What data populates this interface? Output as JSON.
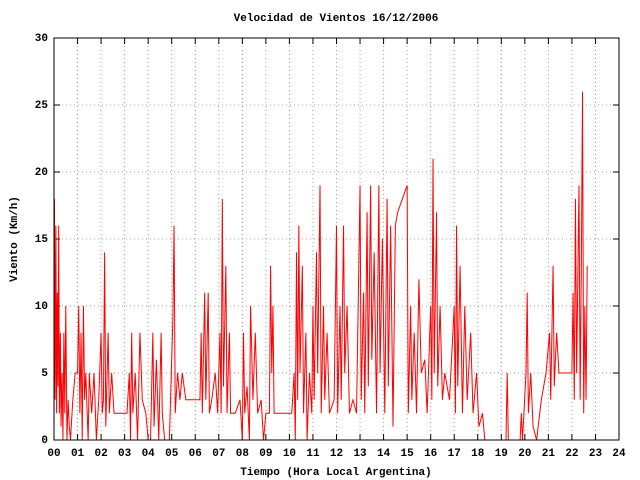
{
  "chart_data": {
    "type": "line",
    "title": "Velocidad de Vientos 16/12/2006",
    "xlabel": "Tiempo (Hora Local Argentina)",
    "ylabel": "Viento (Km/h)",
    "color": "#ff0000",
    "grid": true,
    "xlim": [
      0,
      24
    ],
    "xticks": [
      {
        "value": 0,
        "label": "00"
      },
      {
        "value": 1,
        "label": "01"
      },
      {
        "value": 2,
        "label": "02"
      },
      {
        "value": 3,
        "label": "03"
      },
      {
        "value": 4,
        "label": "04"
      },
      {
        "value": 5,
        "label": "05"
      },
      {
        "value": 6,
        "label": "06"
      },
      {
        "value": 7,
        "label": "07"
      },
      {
        "value": 8,
        "label": "08"
      },
      {
        "value": 9,
        "label": "09"
      },
      {
        "value": 10,
        "label": "10"
      },
      {
        "value": 11,
        "label": "11"
      },
      {
        "value": 12,
        "label": "12"
      },
      {
        "value": 13,
        "label": "13"
      },
      {
        "value": 14,
        "label": "14"
      },
      {
        "value": 15,
        "label": "15"
      },
      {
        "value": 16,
        "label": "16"
      },
      {
        "value": 17,
        "label": "17"
      },
      {
        "value": 18,
        "label": "18"
      },
      {
        "value": 19,
        "label": "19"
      },
      {
        "value": 20,
        "label": "20"
      },
      {
        "value": 21,
        "label": "21"
      },
      {
        "value": 22,
        "label": "22"
      },
      {
        "value": 23,
        "label": "23"
      },
      {
        "value": 24,
        "label": "24"
      }
    ],
    "ylim": [
      0,
      30
    ],
    "yticks": [
      0,
      5,
      10,
      15,
      20,
      25,
      30
    ],
    "x": [
      0,
      0.02,
      0.05,
      0.08,
      0.11,
      0.14,
      0.17,
      0.2,
      0.23,
      0.27,
      0.3,
      0.34,
      0.38,
      0.42,
      0.46,
      0.5,
      0.55,
      0.6,
      0.65,
      0.7,
      0.8,
      0.9,
      1,
      1.05,
      1.1,
      1.15,
      1.2,
      1.25,
      1.3,
      1.35,
      1.45,
      1.5,
      1.6,
      1.7,
      1.8,
      1.9,
      2,
      2.05,
      2.1,
      2.15,
      2.2,
      2.3,
      2.35,
      2.45,
      2.55,
      2.8,
      3.1,
      3.2,
      3.25,
      3.3,
      3.35,
      3.45,
      3.55,
      3.65,
      3.75,
      3.9,
      4,
      4.1,
      4.2,
      4.25,
      4.35,
      4.45,
      4.55,
      4.6,
      4.7,
      4.9,
      5.05,
      5.1,
      5.15,
      5.25,
      5.35,
      5.45,
      5.6,
      6,
      6.2,
      6.25,
      6.3,
      6.4,
      6.45,
      6.55,
      6.6,
      6.7,
      6.85,
      6.95,
      7.05,
      7.1,
      7.15,
      7.2,
      7.3,
      7.35,
      7.45,
      7.5,
      7.7,
      7.9,
      8,
      8.05,
      8.1,
      8.2,
      8.3,
      8.35,
      8.45,
      8.55,
      8.65,
      8.8,
      8.9,
      9,
      9.15,
      9.2,
      9.25,
      9.3,
      9.35,
      9.7,
      10.1,
      10.2,
      10.25,
      10.3,
      10.35,
      10.4,
      10.45,
      10.55,
      10.6,
      10.7,
      10.75,
      10.85,
      10.95,
      11,
      11.05,
      11.15,
      11.2,
      11.3,
      11.35,
      11.45,
      11.5,
      11.6,
      11.7,
      11.9,
      12,
      12.05,
      12.15,
      12.2,
      12.3,
      12.35,
      12.45,
      12.55,
      12.7,
      12.85,
      13,
      13.05,
      13.15,
      13.2,
      13.3,
      13.35,
      13.45,
      13.5,
      13.6,
      13.7,
      13.8,
      13.85,
      13.95,
      14.05,
      14.15,
      14.2,
      14.3,
      14.4,
      14.5,
      14.6,
      14.8,
      15,
      15.05,
      15.15,
      15.2,
      15.3,
      15.4,
      15.5,
      15.6,
      15.75,
      15.85,
      16,
      16.05,
      16.1,
      16.15,
      16.25,
      16.3,
      16.4,
      16.5,
      16.6,
      16.8,
      17,
      17.05,
      17.1,
      17.15,
      17.25,
      17.35,
      17.45,
      17.55,
      17.7,
      17.8,
      17.95,
      18.05,
      18.2,
      18.3,
      18.8,
      19.2,
      19.25,
      19.3,
      19.8,
      19.85,
      19.9,
      20.05,
      20.1,
      20.15,
      20.25,
      20.35,
      20.5,
      20.7,
      20.9,
      21.05,
      21.1,
      21.2,
      21.25,
      21.35,
      21.45,
      21.7,
      22,
      22.05,
      22.1,
      22.15,
      22.2,
      22.3,
      22.35,
      22.4,
      22.45,
      22.5,
      22.55,
      22.6,
      22.65
    ],
    "values": [
      0,
      18,
      3,
      16,
      2,
      11,
      4,
      16,
      2,
      8,
      1,
      5,
      0,
      8,
      2,
      10,
      0,
      3,
      1,
      0,
      3,
      5,
      5,
      10,
      2,
      8,
      0,
      10,
      3,
      5,
      0,
      5,
      2,
      5,
      0,
      3,
      8,
      2,
      3,
      14,
      1,
      8,
      2,
      5,
      2,
      2,
      2,
      5,
      0,
      8,
      2,
      5,
      0,
      8,
      3,
      2,
      0,
      0,
      8,
      1,
      6,
      0,
      8,
      2,
      0,
      0,
      9,
      16,
      2,
      5,
      3,
      5,
      3,
      3,
      3,
      8,
      2,
      11,
      3,
      11,
      2,
      3,
      5,
      2,
      8,
      2,
      18,
      4,
      13,
      2,
      8,
      2,
      2,
      3,
      0,
      8,
      2,
      4,
      0,
      10,
      3,
      8,
      2,
      3,
      0,
      2,
      2,
      13,
      5,
      10,
      2,
      2,
      2,
      5,
      0,
      14,
      3,
      16,
      5,
      13,
      2,
      8,
      0,
      5,
      2,
      10,
      3,
      14,
      5,
      19,
      2,
      10,
      3,
      8,
      2,
      3,
      16,
      2,
      10,
      3,
      16,
      5,
      10,
      2,
      3,
      2,
      19,
      3,
      11,
      2,
      17,
      4,
      19,
      6,
      14,
      2,
      19,
      5,
      15,
      2,
      18,
      4,
      16,
      1,
      16,
      17,
      18,
      19,
      2,
      10,
      3,
      8,
      2,
      12,
      5,
      6,
      2,
      10,
      3,
      21,
      5,
      17,
      4,
      10,
      3,
      5,
      3,
      10,
      2,
      16,
      4,
      13,
      2,
      10,
      3,
      8,
      2,
      5,
      1,
      2,
      0,
      0,
      0,
      5,
      0,
      0,
      2,
      0,
      5,
      11,
      2,
      5,
      1,
      0,
      3,
      5,
      8,
      3,
      13,
      4,
      8,
      5,
      5,
      5,
      11,
      3,
      18,
      5,
      19,
      3,
      13,
      26,
      2,
      10,
      3,
      13
    ]
  }
}
